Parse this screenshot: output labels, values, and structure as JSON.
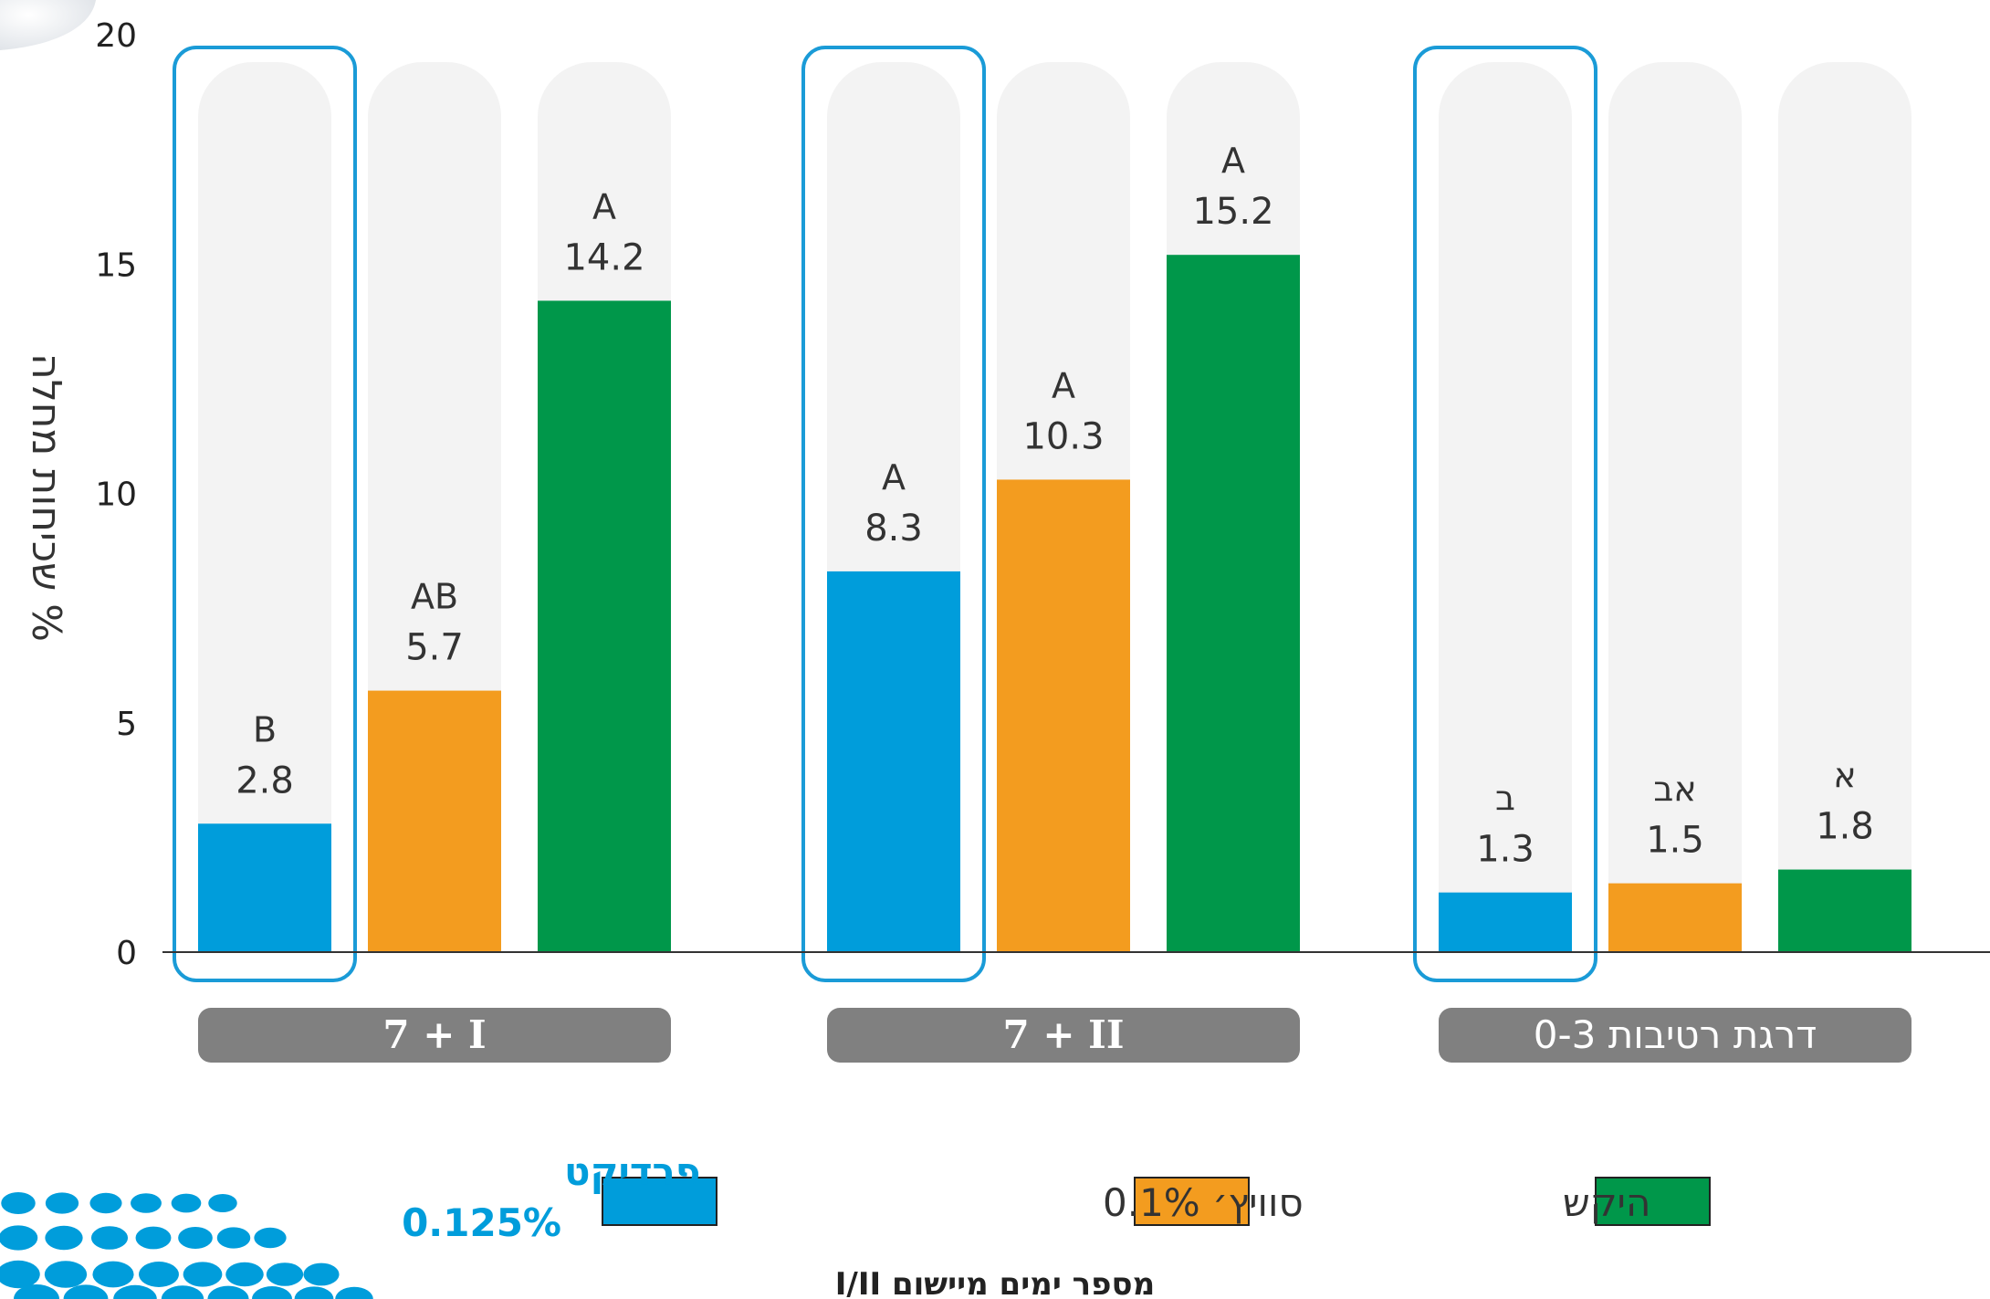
{
  "chart_data": {
    "type": "bar",
    "ylabel": "% שכיחות מחלה",
    "xlabel": "מספר ימים מיישום I/II",
    "ylim": [
      0,
      20
    ],
    "yticks": [
      "0",
      "5",
      "10",
      "15",
      "20"
    ],
    "grid": false,
    "legend_position": "bottom",
    "groups": [
      {
        "label": "7 + I",
        "bars": [
          {
            "series": "פרדיקט 0.125%",
            "value": 2.8,
            "letter": "B",
            "value_label": "2.8"
          },
          {
            "series": "סוויץ׳ 0.1%",
            "value": 5.7,
            "letter": "AB",
            "value_label": "5.7"
          },
          {
            "series": "היקש",
            "value": 14.2,
            "letter": "A",
            "value_label": "14.2"
          }
        ]
      },
      {
        "label": "7 + II",
        "bars": [
          {
            "series": "פרדיקט 0.125%",
            "value": 8.3,
            "letter": "A",
            "value_label": "8.3"
          },
          {
            "series": "סוויץ׳ 0.1%",
            "value": 10.3,
            "letter": "A",
            "value_label": "10.3"
          },
          {
            "series": "היקש",
            "value": 15.2,
            "letter": "A",
            "value_label": "15.2"
          }
        ]
      },
      {
        "label": "דרגת רטיבות 0-3",
        "bars": [
          {
            "series": "פרדיקט 0.125%",
            "value": 1.3,
            "letter": "ב",
            "value_label": "1.3"
          },
          {
            "series": "סוויץ׳ 0.1%",
            "value": 1.5,
            "letter": "אב",
            "value_label": "1.5"
          },
          {
            "series": "היקש",
            "value": 1.8,
            "letter": "א",
            "value_label": "1.8"
          }
        ]
      }
    ],
    "series": [
      {
        "name": "פרדיקט 0.125%",
        "label_line1": "פרדיקט",
        "label_line2": "0.125%",
        "color": "#009ddb"
      },
      {
        "name": "סוויץ׳ 0.1%",
        "color": "#f39c1f"
      },
      {
        "name": "היקש",
        "color": "#00974a"
      }
    ],
    "colors": {
      "track": "#f3f3f3",
      "highlight_outline": "#1a9bd7",
      "group_pill": "#808080",
      "axis": "#333333",
      "dots": "#009ddb"
    }
  }
}
